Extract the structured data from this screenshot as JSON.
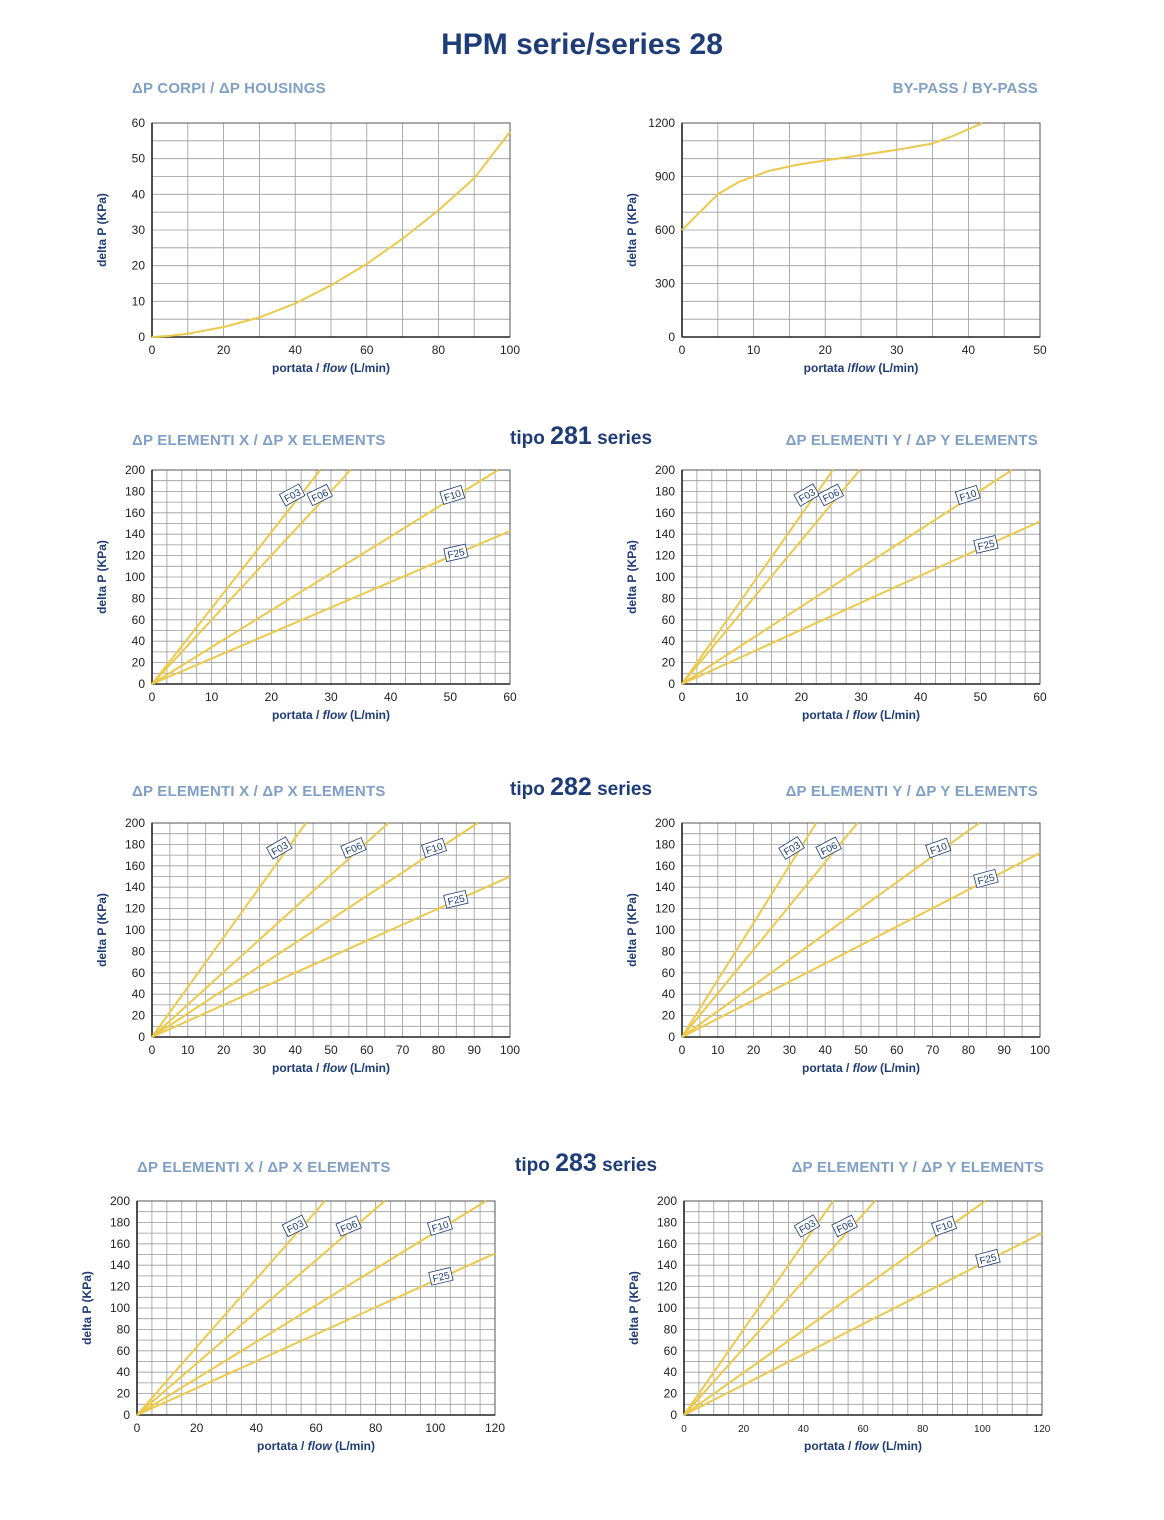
{
  "title": "HPM serie/series 28",
  "colors": {
    "title": "#1e3c78",
    "section": "#7f9fc6",
    "curve": "#ecc94b",
    "grid": "#9a9a9a",
    "axis": "#222222"
  },
  "sections": {
    "housings": "ΔP CORPI / ΔP HOUSINGS",
    "bypass": "BY-PASS / BY-PASS",
    "x_281": "ΔP ELEMENTI X / ΔP X ELEMENTS",
    "y_281": "ΔP ELEMENTI Y / ΔP Y ELEMENTS",
    "x_282": "ΔP ELEMENTI X / ΔP X ELEMENTS",
    "y_282": "ΔP ELEMENTI Y / ΔP Y ELEMENTS",
    "x_283": "ΔP ELEMENTI X / ΔP X ELEMENTS",
    "y_283": "ΔP ELEMENTI Y / ΔP Y ELEMENTS"
  },
  "series_headers": {
    "s281": {
      "prefix": "tipo",
      "num": "281",
      "suffix": "series"
    },
    "s282": {
      "prefix": "tipo",
      "num": "282",
      "suffix": "series"
    },
    "s283": {
      "prefix": "tipo",
      "num": "283",
      "suffix": "series"
    }
  },
  "chart_data": [
    {
      "id": "housings",
      "type": "line",
      "ylabel": "delta P (KPa)",
      "xlabel_a": "portata / ",
      "xlabel_b": "flow",
      "xlabel_c": " (L/min)",
      "xlim": [
        0,
        100
      ],
      "ylim": [
        0,
        60
      ],
      "xticks": [
        0,
        20,
        40,
        60,
        80,
        100
      ],
      "yticks": [
        0,
        10,
        20,
        30,
        40,
        50,
        60
      ],
      "xgrid": 10,
      "ygrid": 5,
      "series": [
        {
          "points": [
            [
              0,
              0
            ],
            [
              5,
              0.3
            ],
            [
              10,
              0.9
            ],
            [
              20,
              2.8
            ],
            [
              30,
              5.5
            ],
            [
              40,
              9.4
            ],
            [
              50,
              14.5
            ],
            [
              60,
              20.5
            ],
            [
              70,
              27.6
            ],
            [
              80,
              35.5
            ],
            [
              90,
              44.5
            ],
            [
              100,
              57.5
            ]
          ]
        }
      ]
    },
    {
      "id": "bypass",
      "type": "line",
      "ylabel": "delta P (KPa)",
      "xlabel_a": "portata /",
      "xlabel_b": "flow",
      "xlabel_c": " (L/min)",
      "xlim": [
        0,
        50
      ],
      "ylim": [
        0,
        1200
      ],
      "xticks": [
        0,
        10,
        20,
        30,
        40,
        50
      ],
      "yticks": [
        0,
        300,
        600,
        900,
        1200
      ],
      "xgrid": 5,
      "ygrid": 100,
      "series": [
        {
          "points": [
            [
              0,
              600
            ],
            [
              3,
              720
            ],
            [
              5,
              800
            ],
            [
              8,
              870
            ],
            [
              12,
              930
            ],
            [
              16,
              965
            ],
            [
              20,
              990
            ],
            [
              25,
              1020
            ],
            [
              30,
              1050
            ],
            [
              35,
              1085
            ],
            [
              38,
              1130
            ],
            [
              42,
              1200
            ]
          ]
        }
      ]
    },
    {
      "id": "x281",
      "type": "line",
      "ylabel": "delta P (KPa)",
      "xlabel_a": "portata / ",
      "xlabel_b": "flow",
      "xlabel_c": " (L/min)",
      "xlim": [
        0,
        60
      ],
      "ylim": [
        0,
        200
      ],
      "xticks": [
        0,
        10,
        20,
        30,
        40,
        50,
        60
      ],
      "yticks": [
        0,
        20,
        40,
        60,
        80,
        100,
        120,
        140,
        160,
        180,
        200
      ],
      "xgrid": 2.5,
      "ygrid": 10,
      "series": [
        {
          "name": "F03",
          "end": [
            28.2,
            200
          ]
        },
        {
          "name": "F06",
          "end": [
            33.3,
            200
          ]
        },
        {
          "name": "F10",
          "end": [
            58,
            200
          ]
        },
        {
          "name": "F25",
          "end": [
            60,
            143
          ]
        }
      ]
    },
    {
      "id": "y281",
      "type": "line",
      "ylabel": "delta P (KPa)",
      "xlabel_a": "portata / ",
      "xlabel_b": "flow",
      "xlabel_c": " (L/min)",
      "xlim": [
        0,
        60
      ],
      "ylim": [
        0,
        200
      ],
      "xticks": [
        0,
        10,
        20,
        30,
        40,
        50,
        60
      ],
      "yticks": [
        0,
        20,
        40,
        60,
        80,
        100,
        120,
        140,
        160,
        180,
        200
      ],
      "xgrid": 2.5,
      "ygrid": 10,
      "series": [
        {
          "name": "F03",
          "end": [
            25.3,
            200
          ]
        },
        {
          "name": "F06",
          "end": [
            29.8,
            200
          ]
        },
        {
          "name": "F10",
          "end": [
            55.3,
            200
          ]
        },
        {
          "name": "F25",
          "end": [
            60,
            152
          ]
        }
      ]
    },
    {
      "id": "x282",
      "type": "line",
      "ylabel": "delta P (KPa)",
      "xlabel_a": "portata / ",
      "xlabel_b": "flow",
      "xlabel_c": " (L/min)",
      "xlim": [
        0,
        100
      ],
      "ylim": [
        0,
        200
      ],
      "xticks": [
        0,
        10,
        20,
        30,
        40,
        50,
        60,
        70,
        80,
        90,
        100
      ],
      "yticks": [
        0,
        20,
        40,
        60,
        80,
        100,
        120,
        140,
        160,
        180,
        200
      ],
      "xgrid": 5,
      "ygrid": 10,
      "series": [
        {
          "name": "F03",
          "end": [
            43,
            200
          ]
        },
        {
          "name": "F06",
          "end": [
            66,
            200
          ]
        },
        {
          "name": "F10",
          "end": [
            91,
            200
          ]
        },
        {
          "name": "F25",
          "end": [
            100,
            150
          ]
        }
      ]
    },
    {
      "id": "y282",
      "type": "line",
      "ylabel": "delta P (KPa)",
      "xlabel_a": "portata / ",
      "xlabel_b": "flow",
      "xlabel_c": " (L/min)",
      "xlim": [
        0,
        100
      ],
      "ylim": [
        0,
        200
      ],
      "xticks": [
        0,
        10,
        20,
        30,
        40,
        50,
        60,
        70,
        80,
        90,
        100
      ],
      "yticks": [
        0,
        20,
        40,
        60,
        80,
        100,
        120,
        140,
        160,
        180,
        200
      ],
      "xgrid": 5,
      "ygrid": 10,
      "series": [
        {
          "name": "F03",
          "end": [
            37.5,
            200
          ]
        },
        {
          "name": "F06",
          "end": [
            49,
            200
          ]
        },
        {
          "name": "F10",
          "end": [
            83,
            200
          ]
        },
        {
          "name": "F25",
          "end": [
            100,
            172
          ]
        }
      ]
    },
    {
      "id": "x283",
      "type": "line",
      "ylabel": "delta P (KPa)",
      "xlabel_a": "portata / ",
      "xlabel_b": "flow",
      "xlabel_c": " (L/min)",
      "xlim": [
        0,
        120
      ],
      "ylim": [
        0,
        200
      ],
      "xticks": [
        0,
        20,
        40,
        60,
        80,
        100,
        120
      ],
      "yticks": [
        0,
        20,
        40,
        60,
        80,
        100,
        120,
        140,
        160,
        180,
        200
      ],
      "xgrid": 5,
      "ygrid": 10,
      "series": [
        {
          "name": "F03",
          "end": [
            63,
            200
          ]
        },
        {
          "name": "F06",
          "end": [
            83,
            200
          ]
        },
        {
          "name": "F10",
          "end": [
            117,
            200
          ]
        },
        {
          "name": "F25",
          "end": [
            120,
            151
          ]
        }
      ]
    },
    {
      "id": "y283",
      "type": "line",
      "ylabel": "delta P (KPa)",
      "xlabel_a": "portata / ",
      "xlabel_b": "flow",
      "xlabel_c": " (L/min)",
      "xlim": [
        0,
        120
      ],
      "ylim": [
        0,
        200
      ],
      "xticks": [
        0,
        20,
        40,
        60,
        80,
        100,
        120
      ],
      "yticks": [
        0,
        20,
        40,
        60,
        80,
        100,
        120,
        140,
        160,
        180,
        200
      ],
      "xgrid": 5,
      "ygrid": 10,
      "small_xticks": true,
      "series": [
        {
          "name": "F03",
          "end": [
            50,
            200
          ]
        },
        {
          "name": "F06",
          "end": [
            64,
            200
          ]
        },
        {
          "name": "F10",
          "end": [
            101,
            200
          ]
        },
        {
          "name": "F25",
          "end": [
            120,
            170
          ]
        }
      ]
    }
  ]
}
